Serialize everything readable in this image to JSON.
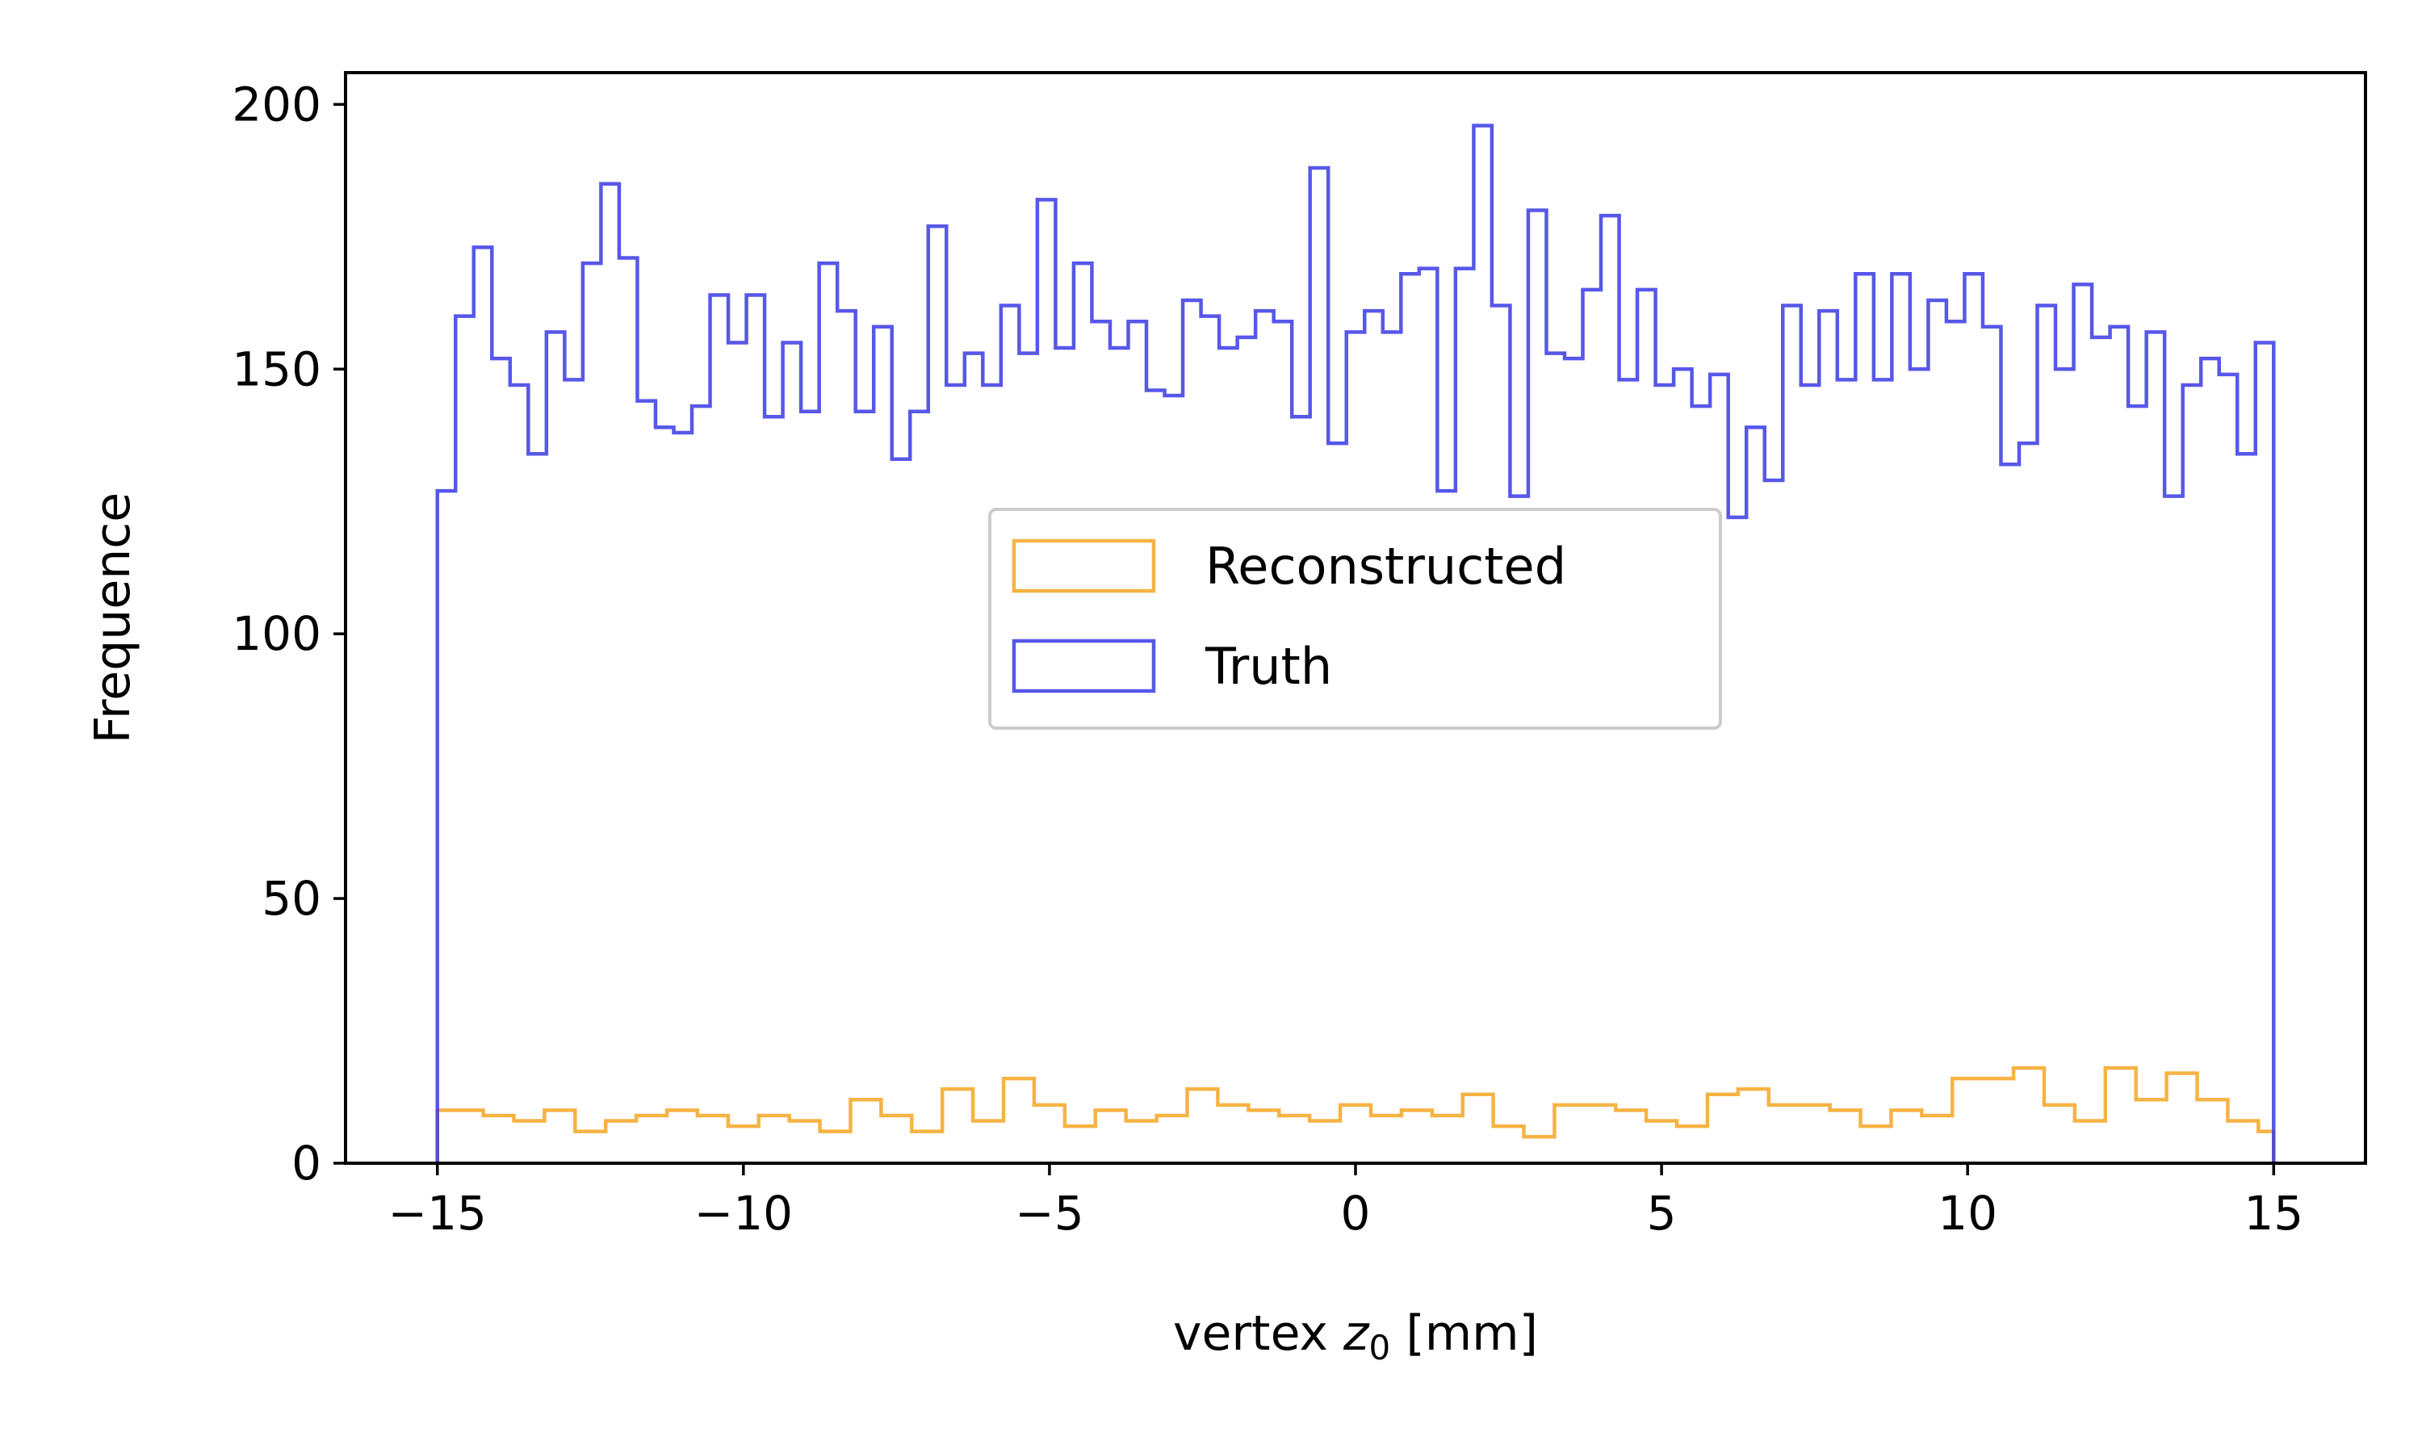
{
  "chart_data": {
    "type": "histogram",
    "xlabel_prefix": "vertex ",
    "xlabel_var": "z",
    "xlabel_sub": "0",
    "xlabel_suffix": " [mm]",
    "ylabel": "Frequence",
    "xlim": [
      -16.5,
      16.5
    ],
    "ylim": [
      0,
      206
    ],
    "xticks": [
      -15,
      -10,
      -5,
      0,
      5,
      10,
      15
    ],
    "xtick_labels": [
      "−15",
      "−10",
      "−5",
      "0",
      "5",
      "10",
      "15"
    ],
    "yticks": [
      0,
      50,
      100,
      150,
      200
    ],
    "ytick_labels": [
      "0",
      "50",
      "100",
      "150",
      "200"
    ],
    "bin_range": [
      -15,
      15
    ],
    "bin_count": 120,
    "grid": false,
    "legend_placement": "center",
    "series": [
      {
        "name": "Reconstructed",
        "color": "#f5a623",
        "values": [
          10,
          10,
          10,
          9,
          9,
          8,
          8,
          10,
          10,
          6,
          6,
          8,
          8,
          9,
          9,
          10,
          10,
          9,
          9,
          7,
          7,
          9,
          9,
          8,
          8,
          6,
          6,
          12,
          12,
          9,
          9,
          6,
          6,
          14,
          14,
          8,
          8,
          16,
          16,
          11,
          11,
          7,
          7,
          10,
          10,
          8,
          8,
          9,
          9,
          14,
          14,
          11,
          11,
          10,
          10,
          9,
          9,
          8,
          8,
          11,
          11,
          9,
          9,
          10,
          10,
          9,
          9,
          13,
          13,
          7,
          7,
          5,
          5,
          11,
          11,
          11,
          11,
          10,
          10,
          8,
          8,
          7,
          7,
          13,
          13,
          14,
          14,
          11,
          11,
          11,
          11,
          10,
          10,
          7,
          7,
          10,
          10,
          9,
          9,
          16,
          16,
          16,
          16,
          18,
          18,
          11,
          11,
          8,
          8,
          18,
          18,
          12,
          12,
          17,
          17,
          12,
          12,
          8,
          8,
          6
        ]
      },
      {
        "name": "Truth",
        "color": "#3a3ae6",
        "values": [
          127,
          160,
          173,
          152,
          147,
          134,
          157,
          148,
          170,
          185,
          171,
          144,
          139,
          138,
          143,
          164,
          155,
          164,
          141,
          155,
          142,
          170,
          161,
          142,
          158,
          133,
          142,
          177,
          147,
          153,
          147,
          162,
          153,
          182,
          154,
          170,
          159,
          154,
          159,
          146,
          145,
          163,
          160,
          154,
          156,
          161,
          159,
          141,
          188,
          136,
          157,
          161,
          157,
          168,
          169,
          127,
          169,
          196,
          162,
          126,
          180,
          153,
          152,
          165,
          179,
          148,
          165,
          147,
          150,
          143,
          149,
          122,
          139,
          129,
          162,
          147,
          161,
          148,
          168,
          148,
          168,
          150,
          163,
          159,
          168,
          158,
          132,
          136,
          162,
          150,
          166,
          156,
          158,
          143,
          157,
          126,
          147,
          152,
          149,
          134,
          155
        ]
      }
    ]
  }
}
